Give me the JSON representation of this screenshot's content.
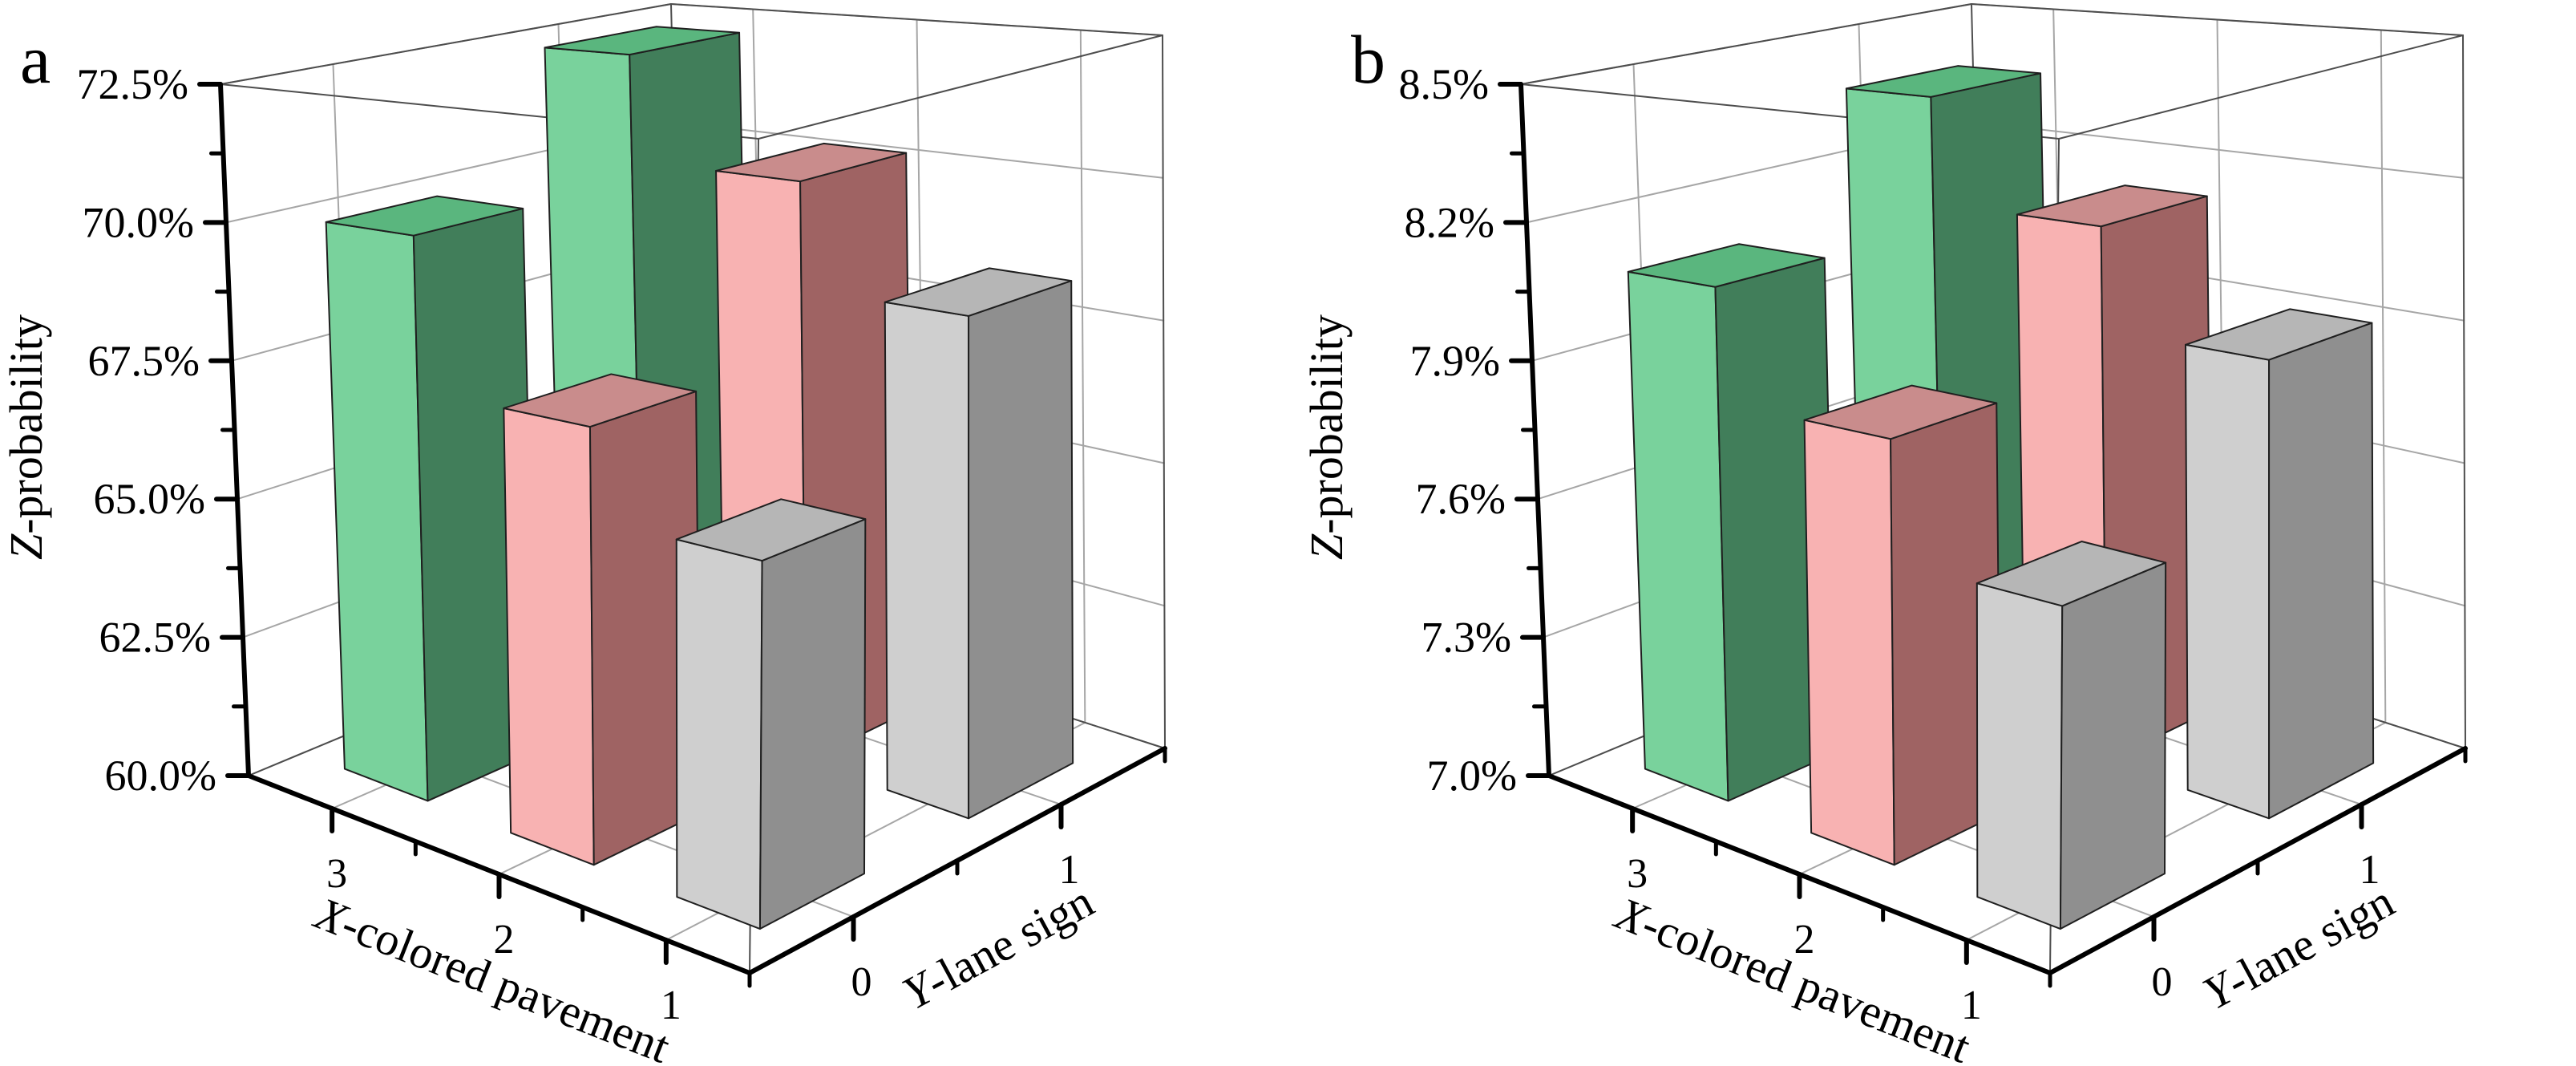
{
  "figure": {
    "background": "#ffffff",
    "description_texts": {
      "panel_a": "a",
      "panel_b": "b"
    }
  },
  "style": {
    "axis_color": "#000000",
    "grid_color": "#a6a6a6",
    "box_edge_color": "#4d4d4d",
    "bar_edge_color": "#1f1f1f"
  },
  "chart_data": [
    {
      "type": "bar",
      "subtype": "3d-column",
      "panel_label": "a",
      "xlabel": "X-colored pavement",
      "ylabel": "Y-lane sign",
      "zlabel": "Z-probability",
      "x_ticks": [
        3,
        2,
        1
      ],
      "x_minor_ticks": [
        2.5,
        1.5
      ],
      "y_ticks": [
        0,
        1
      ],
      "y_minor_ticks": [
        0.5
      ],
      "zlim": [
        60,
        72.5
      ],
      "z_tick_values": [
        60,
        62.5,
        65,
        67.5,
        70,
        72.5
      ],
      "z_tick_labels": [
        "60.0%",
        "62.5%",
        "65.0%",
        "67.5%",
        "70.0%",
        "72.5%"
      ],
      "grid": true,
      "bars": [
        {
          "x": 3,
          "y": 0,
          "z": 69.9
        },
        {
          "x": 3,
          "y": 1,
          "z": 72.3
        },
        {
          "x": 2,
          "y": 0,
          "z": 67.2
        },
        {
          "x": 2,
          "y": 1,
          "z": 70.3
        },
        {
          "x": 1,
          "y": 0,
          "z": 65.7
        },
        {
          "x": 1,
          "y": 1,
          "z": 68.4
        }
      ],
      "series_colors": {
        "3": {
          "light": "#79d29c",
          "dark": "#417e5a",
          "top": "#5ab67e"
        },
        "2": {
          "light": "#f8b2b2",
          "dark": "#9f6363",
          "top": "#c98c8c"
        },
        "1": {
          "light": "#cfcfcf",
          "dark": "#8f8f8f",
          "top": "#b6b6b6"
        }
      }
    },
    {
      "type": "bar",
      "subtype": "3d-column",
      "panel_label": "b",
      "xlabel": "X-colored pavement",
      "ylabel": "Y-lane sign",
      "zlabel": "Z-probability",
      "x_ticks": [
        3,
        2,
        1
      ],
      "x_minor_ticks": [
        2.5,
        1.5
      ],
      "y_ticks": [
        0,
        1
      ],
      "y_minor_ticks": [
        0.5
      ],
      "zlim": [
        7.0,
        8.5
      ],
      "z_tick_values": [
        7.0,
        7.3,
        7.6,
        7.9,
        8.2,
        8.5
      ],
      "z_tick_labels": [
        "7.0%",
        "7.3%",
        "7.6%",
        "7.9%",
        "8.2%",
        "8.5%"
      ],
      "grid": true,
      "bars": [
        {
          "x": 3,
          "y": 0,
          "z": 8.08
        },
        {
          "x": 3,
          "y": 1,
          "z": 8.38
        },
        {
          "x": 2,
          "y": 0,
          "z": 7.84
        },
        {
          "x": 2,
          "y": 1,
          "z": 8.14
        },
        {
          "x": 1,
          "y": 0,
          "z": 7.6
        },
        {
          "x": 1,
          "y": 1,
          "z": 7.92
        }
      ],
      "series_colors": {
        "3": {
          "light": "#79d29c",
          "dark": "#417e5a",
          "top": "#5ab67e"
        },
        "2": {
          "light": "#f8b2b2",
          "dark": "#9f6363",
          "top": "#c98c8c"
        },
        "1": {
          "light": "#cfcfcf",
          "dark": "#8f8f8f",
          "top": "#b6b6b6"
        }
      }
    }
  ]
}
